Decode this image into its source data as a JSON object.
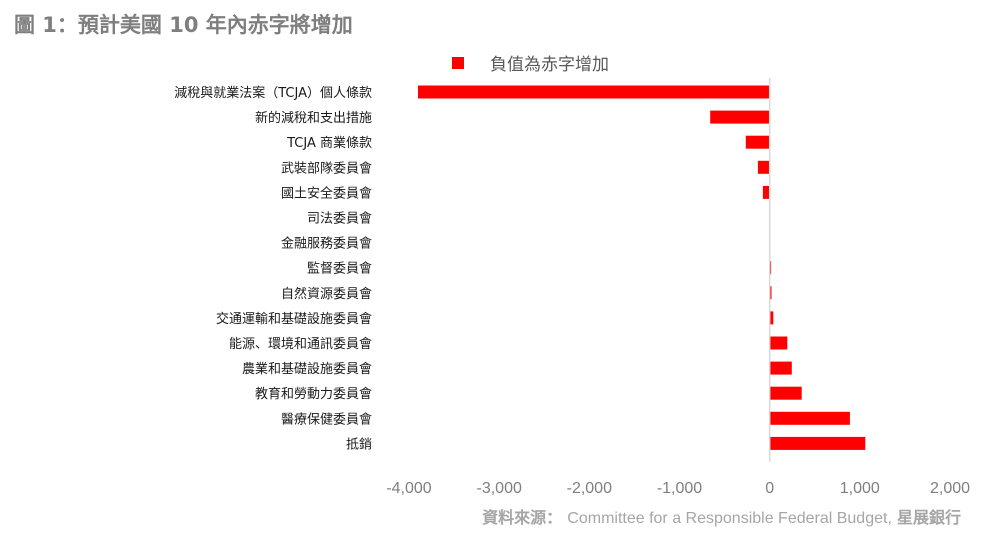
{
  "title": "圖 1：預計美國 10 年內赤字將增加",
  "source": {
    "label": "資料來源：",
    "org": "Committee for a Responsible Federal Budget,",
    "bank": "星展銀行"
  },
  "colors": {
    "bar": "#ff0000",
    "axis": "#d9d9d9",
    "category_text": "#1a1a1a",
    "tick_text": "#7f7f7f"
  },
  "chart_data": {
    "type": "bar",
    "orientation": "horizontal",
    "title": "",
    "xlabel": "",
    "ylabel": "",
    "xlim": [
      -4000,
      2000
    ],
    "x_ticks": [
      -4000,
      -3000,
      -2000,
      -1000,
      0,
      1000,
      2000
    ],
    "x_tick_labels": [
      "-4,000",
      "-3,000",
      "-2,000",
      "-1,000",
      "0",
      "1,000",
      "2,000"
    ],
    "grid": false,
    "legend_position": "top",
    "categories": [
      "減稅與就業法案（TCJA）個人條款",
      "新的減稅和支出措施",
      "TCJA 商業條款",
      "武裝部隊委員會",
      "國土安全委員會",
      "司法委員會",
      "金融服務委員會",
      "監督委員會",
      "自然資源委員會",
      "交通運輸和基礎設施委員會",
      "能源、環境和通訊委員會",
      "農業和基礎設施委員會",
      "教育和勞動力委員會",
      "醫療保健委員會",
      "抵銷"
    ],
    "series": [
      {
        "name": "負值為赤字增加",
        "values": [
          -3900,
          -660,
          -265,
          -130,
          -75,
          -5,
          -3,
          15,
          20,
          40,
          195,
          245,
          355,
          890,
          1060
        ]
      }
    ]
  }
}
